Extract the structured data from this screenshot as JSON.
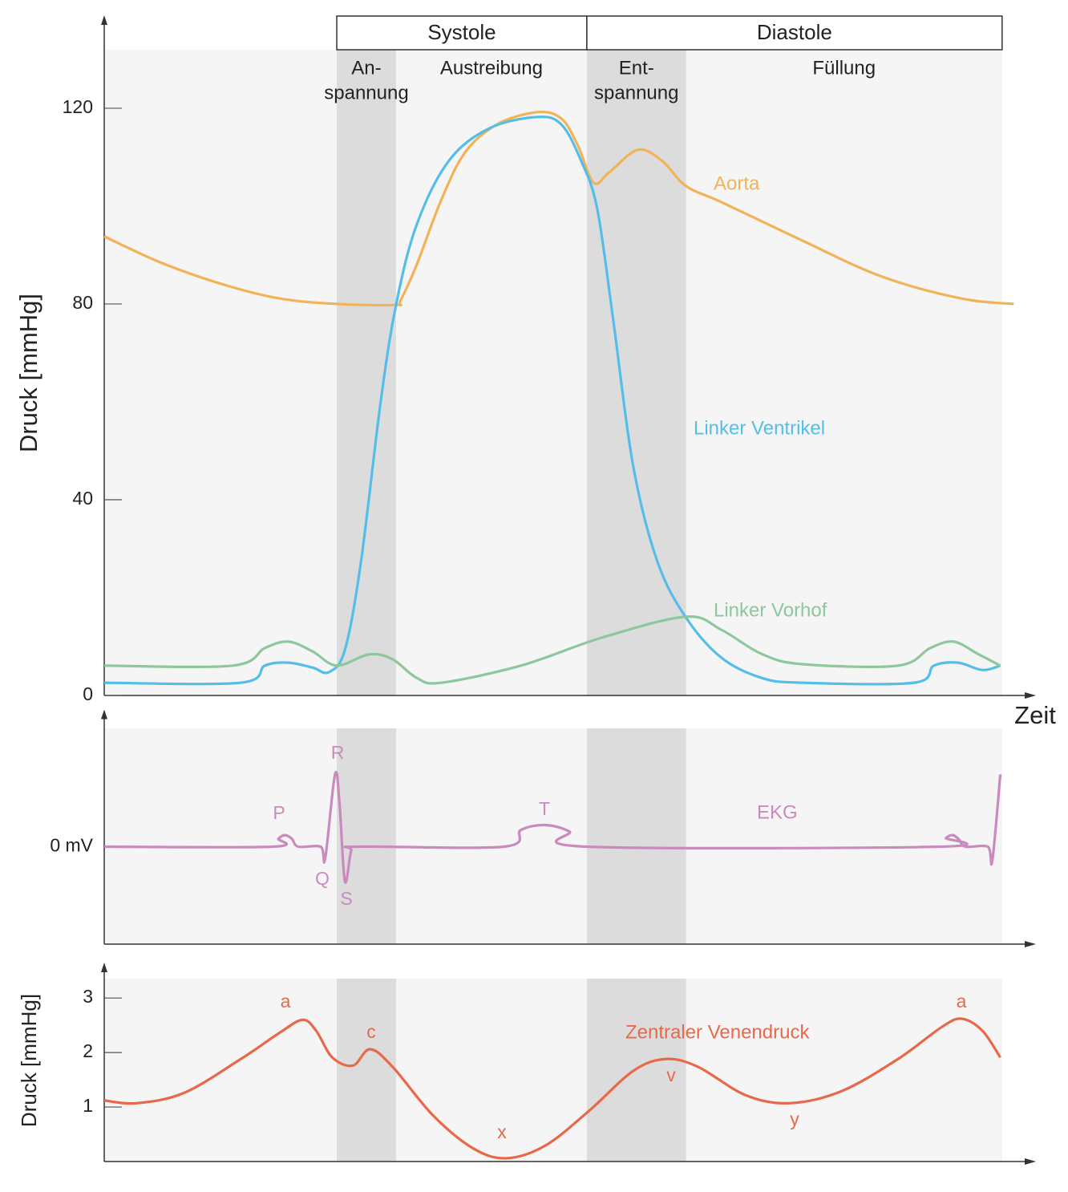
{
  "chart_data": [
    {
      "type": "line",
      "ylabel": "Druck [mmHg]",
      "xlabel": "Zeit",
      "xlim": [
        0,
        103.5
      ],
      "ylim": [
        0,
        139
      ],
      "yticks": [
        0,
        40,
        80,
        120
      ],
      "periods": [
        {
          "label": "Systole",
          "start": 25.9,
          "end": 53.75
        },
        {
          "label": "Diastole",
          "start": 53.75,
          "end": 100
        }
      ],
      "phases": [
        {
          "label": [
            "An-",
            "spannung"
          ],
          "start": 25.9,
          "end": 32.5,
          "shade": true
        },
        {
          "label": [
            "Austreibung"
          ],
          "start": 32.5,
          "end": 53.75,
          "shade": false
        },
        {
          "label": [
            "Ent-",
            "spannung"
          ],
          "start": 53.75,
          "end": 64.8,
          "shade": true
        },
        {
          "label": [
            "Füllung"
          ],
          "start": 64.8,
          "end": 100,
          "shade": false
        }
      ],
      "series": [
        {
          "name": "Aorta",
          "color": "#f2b257",
          "x": [
            0,
            6.25,
            13.4,
            19.6,
            25.9,
            32.5,
            33.0,
            34.8,
            37.5,
            40.2,
            43.75,
            48.2,
            50.9,
            52.7,
            54.5,
            56.25,
            59.4,
            62.1,
            64.8,
            68.75,
            77.7,
            86.6,
            95.5,
            101.3
          ],
          "values": [
            93.8,
            88.5,
            83.9,
            81.1,
            80.0,
            79.8,
            80.7,
            88.0,
            101.1,
            111.0,
            116.7,
            119.2,
            117.9,
            112.6,
            104.8,
            106.9,
            111.5,
            109.3,
            104.1,
            100.8,
            93.0,
            85.6,
            81.1,
            80.0
          ]
        },
        {
          "name": "Linker Ventrikel",
          "color": "#55bde9",
          "x": [
            0,
            15.2,
            17.9,
            20.5,
            23.2,
            25.0,
            26.8,
            28.6,
            30.8,
            32.5,
            34.8,
            38.4,
            42.9,
            48.2,
            50.9,
            53.1,
            54.9,
            56.7,
            58.9,
            61.6,
            64.8,
            68.75,
            73.2,
            77.7,
            90.2,
            92.4,
            95.1,
            97.8,
            99.8
          ],
          "values": [
            2.6,
            2.6,
            6.1,
            6.7,
            5.7,
            4.75,
            9.3,
            27.4,
            60.2,
            79.8,
            96.2,
            109.3,
            115.9,
            118.2,
            116.7,
            109.3,
            99.5,
            76.6,
            47.0,
            27.4,
            15.9,
            7.7,
            3.6,
            2.6,
            2.6,
            6.1,
            6.7,
            5.2,
            6.1
          ]
        },
        {
          "name": "Linker Vorhof",
          "color": "#8ec79c",
          "x": [
            0,
            14.3,
            17.9,
            20.5,
            23.2,
            25.9,
            29.5,
            32.1,
            34.8,
            37.5,
            46.4,
            55.4,
            64.8,
            68.75,
            73.2,
            77.7,
            88.4,
            92.0,
            94.6,
            97.3,
            99.8
          ],
          "values": [
            6.1,
            6.1,
            9.7,
            11.0,
            9.0,
            6.1,
            8.4,
            7.4,
            3.6,
            2.6,
            6.1,
            11.8,
            16.1,
            13.4,
            8.5,
            6.4,
            6.1,
            9.7,
            11.0,
            8.5,
            6.1
          ]
        }
      ]
    },
    {
      "type": "line",
      "xlim": [
        0,
        103.5
      ],
      "ylim": [
        -1.35,
        1.9
      ],
      "yticks": [
        {
          "value": 0,
          "label": "0 mV"
        }
      ],
      "annotations": [
        "P",
        "R",
        "Q",
        "S",
        "T"
      ],
      "series": [
        {
          "name": "EKG",
          "color": "#c98bbd",
          "x": [
            0,
            18.75,
            19.4,
            20.1,
            20.9,
            21.6,
            24.1,
            24.6,
            25.7,
            26.2,
            26.8,
            27.5,
            28.2,
            44.5,
            46.4,
            49.1,
            51.8,
            53.75,
            93.0,
            93.75,
            94.5,
            95.2,
            95.9,
            98.4,
            98.9,
            99.8
          ],
          "values": [
            0,
            0,
            0.11,
            0.16,
            0.11,
            0,
            0,
            -0.17,
            1.0,
            0.61,
            -0.48,
            -0.06,
            0,
            0,
            0.23,
            0.3,
            0.21,
            0,
            0,
            0.12,
            0.16,
            0.1,
            0,
            0,
            -0.2,
            1.0
          ]
        }
      ]
    },
    {
      "type": "line",
      "ylabel": "Druck [mmHg]",
      "xlim": [
        0,
        103.5
      ],
      "ylim": [
        0,
        3.65
      ],
      "yticks": [
        1,
        2,
        3
      ],
      "annotations": [
        "a",
        "c",
        "x",
        "v",
        "y",
        "a"
      ],
      "series": [
        {
          "name": "Zentraler Venendruck",
          "color": "#e8684a",
          "x": [
            0,
            3.6,
            8.9,
            15.2,
            19.6,
            22.1,
            23.6,
            25.4,
            27.7,
            29.6,
            32.1,
            36.6,
            41.1,
            44.8,
            49.1,
            54.0,
            58.9,
            62.5,
            66.1,
            71.4,
            76.3,
            82.1,
            88.4,
            93.3,
            95.5,
            97.8,
            99.8
          ],
          "values": [
            1.12,
            1.07,
            1.26,
            1.88,
            2.37,
            2.6,
            2.4,
            1.91,
            1.76,
            2.06,
            1.74,
            0.85,
            0.24,
            0.06,
            0.29,
            0.93,
            1.66,
            1.88,
            1.74,
            1.22,
            1.07,
            1.29,
            1.88,
            2.47,
            2.62,
            2.4,
            1.91
          ]
        }
      ]
    }
  ]
}
